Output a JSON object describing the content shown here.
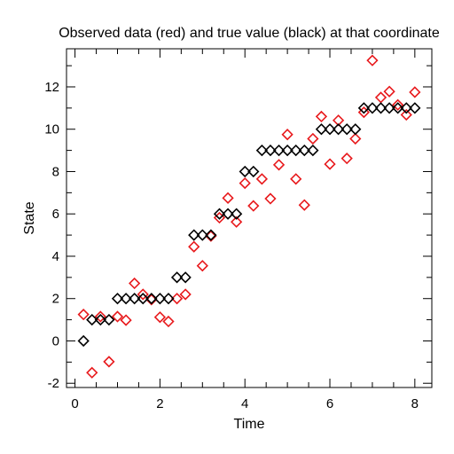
{
  "chart_data": {
    "type": "scatter",
    "title": "Observed data (red) and true value (black) at that coordinate",
    "xlabel": "Time",
    "ylabel": "State",
    "xlim": [
      -0.2,
      8.4
    ],
    "ylim": [
      -2.2,
      13.8
    ],
    "xticks": [
      0,
      2,
      4,
      6,
      8
    ],
    "yticks": [
      -2,
      0,
      2,
      4,
      6,
      8,
      10,
      12
    ],
    "grid": false,
    "marker": "diamond",
    "series": [
      {
        "color": "#000000",
        "points": [
          [
            0.2,
            0
          ],
          [
            0.4,
            1
          ],
          [
            0.6,
            1
          ],
          [
            0.8,
            1
          ],
          [
            1.0,
            2
          ],
          [
            1.2,
            2
          ],
          [
            1.4,
            2
          ],
          [
            1.6,
            2
          ],
          [
            1.8,
            2
          ],
          [
            2.0,
            2
          ],
          [
            2.2,
            2
          ],
          [
            2.4,
            3
          ],
          [
            2.6,
            3
          ],
          [
            2.8,
            5
          ],
          [
            3.0,
            5
          ],
          [
            3.2,
            5
          ],
          [
            3.4,
            6
          ],
          [
            3.6,
            6
          ],
          [
            3.8,
            6
          ],
          [
            4.0,
            8
          ],
          [
            4.2,
            8
          ],
          [
            4.4,
            9
          ],
          [
            4.6,
            9
          ],
          [
            4.8,
            9
          ],
          [
            5.0,
            9
          ],
          [
            5.2,
            9
          ],
          [
            5.4,
            9
          ],
          [
            5.6,
            9
          ],
          [
            5.8,
            10
          ],
          [
            6.0,
            10
          ],
          [
            6.2,
            10
          ],
          [
            6.4,
            10
          ],
          [
            6.6,
            10
          ],
          [
            6.8,
            11
          ],
          [
            7.0,
            11
          ],
          [
            7.2,
            11
          ],
          [
            7.4,
            11
          ],
          [
            7.6,
            11
          ],
          [
            7.8,
            11
          ],
          [
            8.0,
            11
          ]
        ]
      },
      {
        "color": "#e8191c",
        "points": [
          [
            0.2,
            1.25
          ],
          [
            0.4,
            -1.5
          ],
          [
            0.6,
            1.15
          ],
          [
            0.8,
            -0.98
          ],
          [
            1.0,
            1.15
          ],
          [
            1.2,
            0.98
          ],
          [
            1.4,
            2.72
          ],
          [
            1.6,
            2.2
          ],
          [
            1.8,
            1.95
          ],
          [
            2.0,
            1.12
          ],
          [
            2.2,
            0.92
          ],
          [
            2.4,
            2.0
          ],
          [
            2.6,
            2.2
          ],
          [
            2.8,
            4.45
          ],
          [
            3.0,
            3.55
          ],
          [
            3.2,
            4.95
          ],
          [
            3.4,
            5.82
          ],
          [
            3.6,
            6.75
          ],
          [
            3.8,
            5.62
          ],
          [
            4.0,
            7.45
          ],
          [
            4.2,
            6.38
          ],
          [
            4.4,
            7.65
          ],
          [
            4.6,
            6.72
          ],
          [
            4.8,
            8.32
          ],
          [
            5.0,
            9.75
          ],
          [
            5.2,
            7.65
          ],
          [
            5.4,
            6.42
          ],
          [
            5.6,
            9.55
          ],
          [
            5.8,
            10.6
          ],
          [
            6.0,
            8.35
          ],
          [
            6.2,
            10.42
          ],
          [
            6.4,
            8.62
          ],
          [
            6.6,
            9.55
          ],
          [
            6.8,
            10.8
          ],
          [
            7.0,
            13.25
          ],
          [
            7.2,
            11.5
          ],
          [
            7.4,
            11.78
          ],
          [
            7.6,
            11.15
          ],
          [
            7.8,
            10.68
          ],
          [
            8.0,
            11.75
          ]
        ]
      }
    ]
  }
}
